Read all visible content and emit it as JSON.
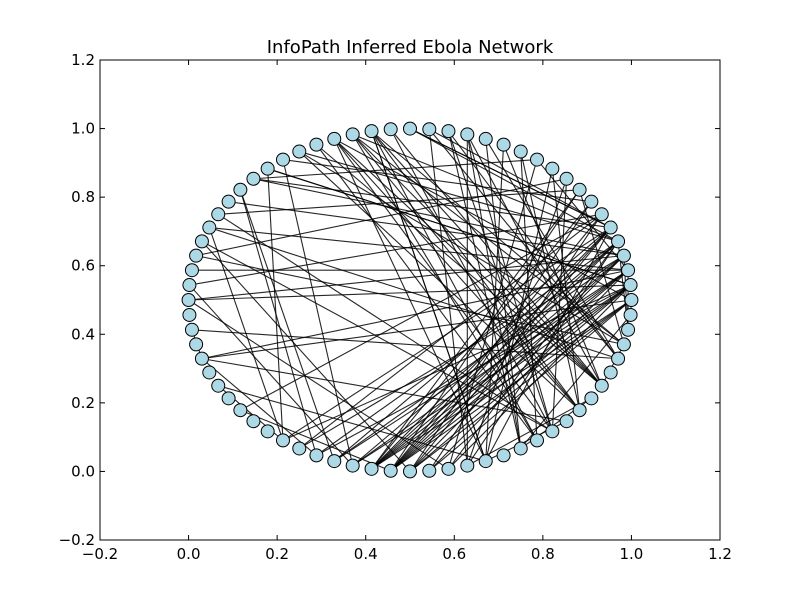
{
  "chart_data": {
    "type": "network",
    "title": "InfoPath Inferred Ebola Network",
    "xlabel": "",
    "ylabel": "",
    "xlim": [
      -0.2,
      1.2
    ],
    "ylim": [
      -0.2,
      1.2
    ],
    "xticks": [
      -0.2,
      0.0,
      0.2,
      0.4,
      0.6,
      0.8,
      1.0,
      1.2
    ],
    "yticks": [
      -0.2,
      0.0,
      0.2,
      0.4,
      0.6,
      0.8,
      1.0,
      1.2
    ],
    "xtick_labels": [
      "−0.2",
      "0.0",
      "0.2",
      "0.4",
      "0.6",
      "0.8",
      "1.0",
      "1.2"
    ],
    "ytick_labels": [
      "−0.2",
      "0.0",
      "0.2",
      "0.4",
      "0.6",
      "0.8",
      "1.0",
      "1.2"
    ],
    "grid": false,
    "node_layout": "circular",
    "node_count": 72,
    "center": [
      0.5,
      0.5
    ],
    "radius": 0.5,
    "node_color": "#add8e6",
    "node_edge_color": "#000000",
    "edge_color": "#000000",
    "edges": [
      [
        52,
        0
      ],
      [
        52,
        1
      ],
      [
        52,
        2
      ],
      [
        52,
        3
      ],
      [
        52,
        4
      ],
      [
        52,
        5
      ],
      [
        53,
        0
      ],
      [
        53,
        1
      ],
      [
        53,
        2
      ],
      [
        53,
        3
      ],
      [
        53,
        4
      ],
      [
        53,
        5
      ],
      [
        54,
        0
      ],
      [
        54,
        1
      ],
      [
        54,
        3
      ],
      [
        54,
        5
      ],
      [
        51,
        1
      ],
      [
        51,
        2
      ],
      [
        51,
        4
      ],
      [
        50,
        2
      ],
      [
        50,
        3
      ],
      [
        50,
        5
      ],
      [
        55,
        0
      ],
      [
        55,
        2
      ],
      [
        49,
        1
      ],
      [
        49,
        4
      ],
      [
        48,
        3
      ],
      [
        48,
        6
      ],
      [
        56,
        4
      ],
      [
        56,
        1
      ],
      [
        47,
        1
      ],
      [
        47,
        5
      ],
      [
        6,
        55
      ],
      [
        6,
        53
      ],
      [
        7,
        52
      ],
      [
        7,
        54
      ],
      [
        8,
        53
      ],
      [
        8,
        52
      ],
      [
        5,
        17
      ],
      [
        5,
        18
      ],
      [
        4,
        21
      ],
      [
        4,
        24
      ],
      [
        3,
        27
      ],
      [
        3,
        29
      ],
      [
        2,
        31
      ],
      [
        2,
        34
      ],
      [
        1,
        36
      ],
      [
        1,
        26
      ],
      [
        0,
        40
      ],
      [
        0,
        22
      ],
      [
        20,
        66
      ],
      [
        20,
        61
      ],
      [
        20,
        58
      ],
      [
        20,
        64
      ],
      [
        20,
        69
      ],
      [
        20,
        58
      ],
      [
        21,
        66
      ],
      [
        21,
        61
      ],
      [
        21,
        69
      ],
      [
        21,
        64
      ],
      [
        22,
        66
      ],
      [
        22,
        64
      ],
      [
        22,
        58
      ],
      [
        22,
        62
      ],
      [
        23,
        66
      ],
      [
        23,
        61
      ],
      [
        24,
        64
      ],
      [
        24,
        69
      ],
      [
        15,
        66
      ],
      [
        15,
        62
      ],
      [
        15,
        60
      ],
      [
        15,
        57
      ],
      [
        16,
        68
      ],
      [
        16,
        62
      ],
      [
        16,
        60
      ],
      [
        17,
        68
      ],
      [
        17,
        57
      ],
      [
        14,
        68
      ],
      [
        14,
        60
      ],
      [
        13,
        66
      ],
      [
        13,
        58
      ],
      [
        12,
        64
      ],
      [
        12,
        61
      ],
      [
        10,
        64
      ],
      [
        10,
        58
      ],
      [
        9,
        62
      ],
      [
        9,
        57
      ],
      [
        30,
        62
      ],
      [
        30,
        8
      ],
      [
        31,
        68
      ],
      [
        31,
        47
      ],
      [
        32,
        62
      ],
      [
        32,
        54
      ],
      [
        33,
        69
      ],
      [
        33,
        9
      ],
      [
        35,
        51
      ],
      [
        35,
        6
      ],
      [
        36,
        56
      ],
      [
        36,
        3
      ],
      [
        38,
        68
      ],
      [
        38,
        40
      ],
      [
        40,
        49
      ],
      [
        40,
        2
      ],
      [
        42,
        58
      ],
      [
        42,
        47
      ],
      [
        44,
        53
      ],
      [
        44,
        6
      ],
      [
        28,
        49
      ],
      [
        28,
        50
      ],
      [
        27,
        11
      ],
      [
        27,
        5
      ],
      [
        26,
        47
      ],
      [
        26,
        1
      ],
      [
        25,
        51
      ],
      [
        25,
        7
      ],
      [
        19,
        62
      ],
      [
        19,
        66
      ],
      [
        18,
        5
      ],
      [
        18,
        4
      ],
      [
        11,
        2
      ],
      [
        11,
        56
      ],
      [
        70,
        3
      ],
      [
        70,
        4
      ],
      [
        70,
        2
      ],
      [
        71,
        0
      ],
      [
        71,
        60
      ],
      [
        69,
        8
      ],
      [
        69,
        66
      ],
      [
        65,
        57
      ],
      [
        65,
        60
      ],
      [
        63,
        58
      ],
      [
        63,
        40
      ],
      [
        58,
        5
      ],
      [
        57,
        4
      ]
    ]
  }
}
